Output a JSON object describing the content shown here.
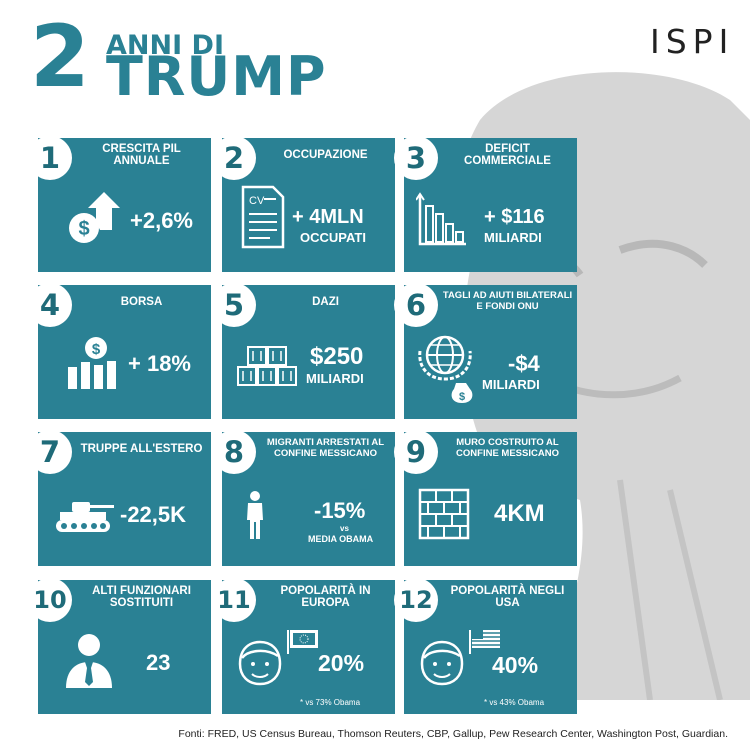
{
  "header": {
    "number": "2",
    "line1": "ANNI DI",
    "line2": "TRUMP",
    "brand": "ISPI"
  },
  "colors": {
    "accent": "#2a8194",
    "text_light": "#ffffff"
  },
  "cards": [
    {
      "num": "1",
      "label": "Crescita PIL annuale",
      "value": "+2,6%",
      "icon": "money-growth-icon"
    },
    {
      "num": "2",
      "label": "Occupazione",
      "value": "+ 4MLN",
      "sub": "OCCUPATI",
      "icon": "cv-document-icon",
      "icon_text": "CV"
    },
    {
      "num": "3",
      "label": "Deficit commerciale",
      "value": "+ $116",
      "sub": "MILIARDI",
      "icon": "bar-chart-icon"
    },
    {
      "num": "4",
      "label": "Borsa",
      "value": "+ 18%",
      "icon": "stock-coins-icon"
    },
    {
      "num": "5",
      "label": "Dazi",
      "value": "$250",
      "sub": "MILIARDI",
      "icon": "containers-icon"
    },
    {
      "num": "6",
      "label": "Tagli ad aiuti bilaterali e fondi ONU",
      "value": "-$4",
      "sub": "MILIARDI",
      "icon": "globe-aid-icon"
    },
    {
      "num": "7",
      "label": "Truppe all'estero",
      "value": "-22,5K",
      "icon": "tank-icon"
    },
    {
      "num": "8",
      "label": "Migranti arrestati al confine messicano",
      "value": "-15%",
      "sub_small": "vs",
      "sub": "MEDIA OBAMA",
      "icon": "person-icon"
    },
    {
      "num": "9",
      "label": "Muro costruito al confine messicano",
      "value": "4KM",
      "icon": "brick-wall-icon"
    },
    {
      "num": "10",
      "label": "Alti funzionari sostituiti",
      "value": "23",
      "icon": "official-icon"
    },
    {
      "num": "11",
      "label": "Popolarità in Europa",
      "value": "20%",
      "note": "* vs 73% Obama",
      "icon": "face-eu-flag-icon"
    },
    {
      "num": "12",
      "label": "Popolarità negli USA",
      "value": "40%",
      "note": "* vs 43% Obama",
      "icon": "face-us-flag-icon"
    }
  ],
  "footer": {
    "sources": "Fonti: FRED, US Census Bureau, Thomson Reuters, CBP, Gallup, Pew Research Center, Washington Post, Guardian."
  }
}
